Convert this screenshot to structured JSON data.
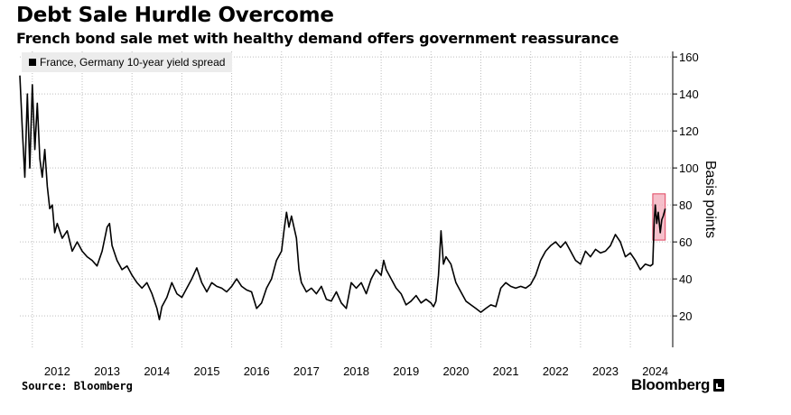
{
  "title": "Debt Sale Hurdle Overcome",
  "subtitle": "French bond sale met with healthy demand offers government reassurance",
  "source": "Source: Bloomberg",
  "brand": "Bloomberg",
  "colors": {
    "line": "#000000",
    "highlight_fill": "#f2a9b8",
    "highlight_stroke": "#e0445f",
    "grid": "#bdbdbd"
  },
  "chart_data": {
    "type": "line",
    "title": "Debt Sale Hurdle Overcome",
    "subtitle": "French bond sale met with healthy demand offers government reassurance",
    "ylabel": "Basis points",
    "ylim": [
      3,
      163
    ],
    "yticks": [
      20,
      40,
      60,
      80,
      100,
      120,
      140,
      160
    ],
    "xlim": [
      2011.75,
      2024.85
    ],
    "xticks": [
      "2012",
      "2013",
      "2014",
      "2015",
      "2016",
      "2017",
      "2018",
      "2019",
      "2020",
      "2021",
      "2022",
      "2023",
      "2024"
    ],
    "grid": true,
    "y_axis_side": "right",
    "legend": {
      "position": "top-left",
      "entries": [
        "France, Germany 10-year yield spread"
      ]
    },
    "highlight": {
      "x_range": [
        2024.45,
        2024.7
      ],
      "y_range": [
        61,
        86
      ]
    },
    "series": [
      {
        "name": "France, Germany 10-year yield spread",
        "points": [
          [
            2011.75,
            150
          ],
          [
            2011.8,
            120
          ],
          [
            2011.85,
            95
          ],
          [
            2011.9,
            140
          ],
          [
            2011.95,
            100
          ],
          [
            2012.0,
            145
          ],
          [
            2012.05,
            110
          ],
          [
            2012.1,
            135
          ],
          [
            2012.15,
            105
          ],
          [
            2012.2,
            95
          ],
          [
            2012.25,
            110
          ],
          [
            2012.3,
            90
          ],
          [
            2012.35,
            78
          ],
          [
            2012.4,
            80
          ],
          [
            2012.45,
            65
          ],
          [
            2012.5,
            70
          ],
          [
            2012.6,
            62
          ],
          [
            2012.7,
            66
          ],
          [
            2012.8,
            55
          ],
          [
            2012.9,
            60
          ],
          [
            2013.0,
            55
          ],
          [
            2013.1,
            52
          ],
          [
            2013.2,
            50
          ],
          [
            2013.3,
            47
          ],
          [
            2013.4,
            55
          ],
          [
            2013.5,
            68
          ],
          [
            2013.55,
            70
          ],
          [
            2013.6,
            58
          ],
          [
            2013.7,
            50
          ],
          [
            2013.8,
            45
          ],
          [
            2013.9,
            47
          ],
          [
            2014.0,
            42
          ],
          [
            2014.1,
            38
          ],
          [
            2014.2,
            35
          ],
          [
            2014.3,
            38
          ],
          [
            2014.4,
            32
          ],
          [
            2014.5,
            24
          ],
          [
            2014.55,
            18
          ],
          [
            2014.6,
            25
          ],
          [
            2014.7,
            30
          ],
          [
            2014.8,
            38
          ],
          [
            2014.9,
            32
          ],
          [
            2015.0,
            30
          ],
          [
            2015.1,
            35
          ],
          [
            2015.2,
            40
          ],
          [
            2015.3,
            46
          ],
          [
            2015.4,
            38
          ],
          [
            2015.5,
            33
          ],
          [
            2015.6,
            38
          ],
          [
            2015.7,
            36
          ],
          [
            2015.8,
            35
          ],
          [
            2015.9,
            33
          ],
          [
            2016.0,
            36
          ],
          [
            2016.1,
            40
          ],
          [
            2016.2,
            36
          ],
          [
            2016.3,
            34
          ],
          [
            2016.4,
            33
          ],
          [
            2016.5,
            24
          ],
          [
            2016.6,
            27
          ],
          [
            2016.7,
            35
          ],
          [
            2016.8,
            40
          ],
          [
            2016.9,
            50
          ],
          [
            2017.0,
            55
          ],
          [
            2017.05,
            66
          ],
          [
            2017.1,
            76
          ],
          [
            2017.15,
            68
          ],
          [
            2017.2,
            74
          ],
          [
            2017.3,
            62
          ],
          [
            2017.35,
            45
          ],
          [
            2017.4,
            38
          ],
          [
            2017.5,
            33
          ],
          [
            2017.6,
            35
          ],
          [
            2017.7,
            32
          ],
          [
            2017.8,
            36
          ],
          [
            2017.9,
            29
          ],
          [
            2018.0,
            28
          ],
          [
            2018.1,
            33
          ],
          [
            2018.2,
            27
          ],
          [
            2018.3,
            24
          ],
          [
            2018.4,
            38
          ],
          [
            2018.5,
            35
          ],
          [
            2018.6,
            38
          ],
          [
            2018.7,
            32
          ],
          [
            2018.8,
            40
          ],
          [
            2018.9,
            45
          ],
          [
            2019.0,
            42
          ],
          [
            2019.05,
            50
          ],
          [
            2019.1,
            45
          ],
          [
            2019.2,
            40
          ],
          [
            2019.3,
            35
          ],
          [
            2019.4,
            32
          ],
          [
            2019.5,
            26
          ],
          [
            2019.6,
            28
          ],
          [
            2019.7,
            31
          ],
          [
            2019.8,
            27
          ],
          [
            2019.9,
            29
          ],
          [
            2020.0,
            27
          ],
          [
            2020.05,
            25
          ],
          [
            2020.1,
            28
          ],
          [
            2020.15,
            42
          ],
          [
            2020.2,
            66
          ],
          [
            2020.25,
            48
          ],
          [
            2020.3,
            52
          ],
          [
            2020.4,
            48
          ],
          [
            2020.5,
            38
          ],
          [
            2020.6,
            33
          ],
          [
            2020.7,
            28
          ],
          [
            2020.8,
            26
          ],
          [
            2020.9,
            24
          ],
          [
            2021.0,
            22
          ],
          [
            2021.1,
            24
          ],
          [
            2021.2,
            26
          ],
          [
            2021.3,
            25
          ],
          [
            2021.4,
            35
          ],
          [
            2021.5,
            38
          ],
          [
            2021.6,
            36
          ],
          [
            2021.7,
            35
          ],
          [
            2021.8,
            36
          ],
          [
            2021.9,
            35
          ],
          [
            2022.0,
            37
          ],
          [
            2022.1,
            42
          ],
          [
            2022.2,
            50
          ],
          [
            2022.3,
            55
          ],
          [
            2022.4,
            58
          ],
          [
            2022.5,
            60
          ],
          [
            2022.6,
            57
          ],
          [
            2022.7,
            60
          ],
          [
            2022.8,
            55
          ],
          [
            2022.9,
            50
          ],
          [
            2023.0,
            48
          ],
          [
            2023.1,
            55
          ],
          [
            2023.2,
            52
          ],
          [
            2023.3,
            56
          ],
          [
            2023.4,
            54
          ],
          [
            2023.5,
            55
          ],
          [
            2023.6,
            58
          ],
          [
            2023.7,
            64
          ],
          [
            2023.8,
            60
          ],
          [
            2023.9,
            52
          ],
          [
            2024.0,
            54
          ],
          [
            2024.1,
            50
          ],
          [
            2024.2,
            45
          ],
          [
            2024.3,
            48
          ],
          [
            2024.4,
            47
          ],
          [
            2024.45,
            48
          ],
          [
            2024.48,
            72
          ],
          [
            2024.5,
            80
          ],
          [
            2024.53,
            70
          ],
          [
            2024.56,
            76
          ],
          [
            2024.6,
            65
          ],
          [
            2024.63,
            72
          ],
          [
            2024.66,
            74
          ],
          [
            2024.7,
            78
          ]
        ]
      }
    ]
  }
}
